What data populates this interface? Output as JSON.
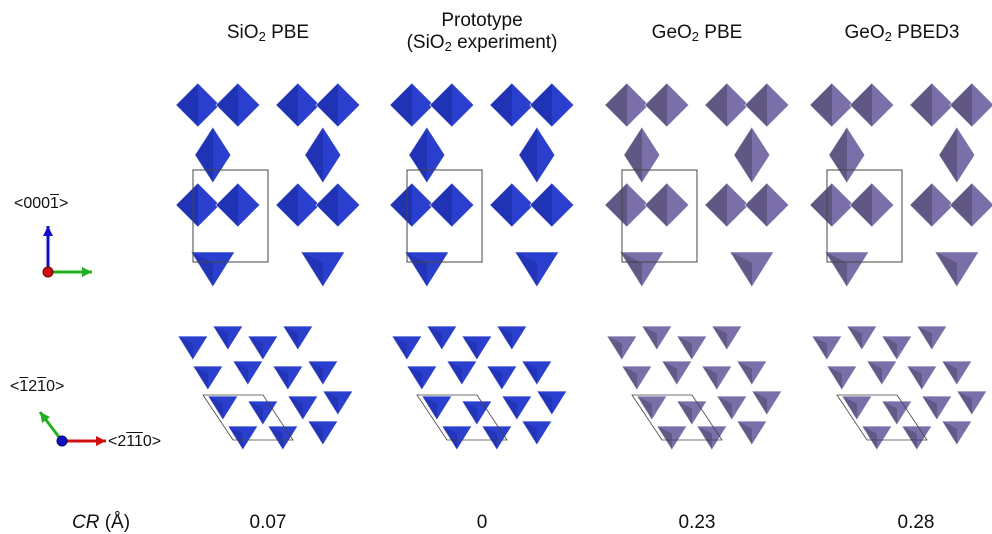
{
  "columns": [
    {
      "title_main": "SiO",
      "title_sub": "2",
      "title_rest": " PBE",
      "title_line1": "",
      "cr": "0.07",
      "color": "#2b3fce",
      "dark": "#1a2aa0"
    },
    {
      "title_main": "(SiO",
      "title_sub": "2",
      "title_rest": " experiment)",
      "title_line1": "Prototype",
      "cr": "0",
      "color": "#2b3fce",
      "dark": "#1a2aa0"
    },
    {
      "title_main": "GeO",
      "title_sub": "2",
      "title_rest": " PBE",
      "title_line1": "",
      "cr": "0.23",
      "color": "#7a6fa8",
      "dark": "#4a4468"
    },
    {
      "title_main": "GeO",
      "title_sub": "2",
      "title_rest": " PBED3",
      "title_line1": "",
      "cr": "0.28",
      "color": "#7a6fa8",
      "dark": "#4a4468"
    }
  ],
  "cr_label": {
    "symbol": "CR",
    "unit": " (Å)"
  },
  "axes": {
    "top_direction": {
      "pre": "<000",
      "bar_digit": "1",
      "post": ">"
    },
    "bottom_direction_a": {
      "pre": "<",
      "d1": "1",
      "d2": "2",
      "d3": "1",
      "d4": "0",
      "post": ">"
    },
    "bottom_direction_b": {
      "pre": "<2",
      "d1": "1",
      "d2": "1",
      "d3": "0",
      "post": ">"
    },
    "axis_colors": {
      "z": "#1010c0",
      "y": "#20b020",
      "x": "#d01010"
    }
  }
}
